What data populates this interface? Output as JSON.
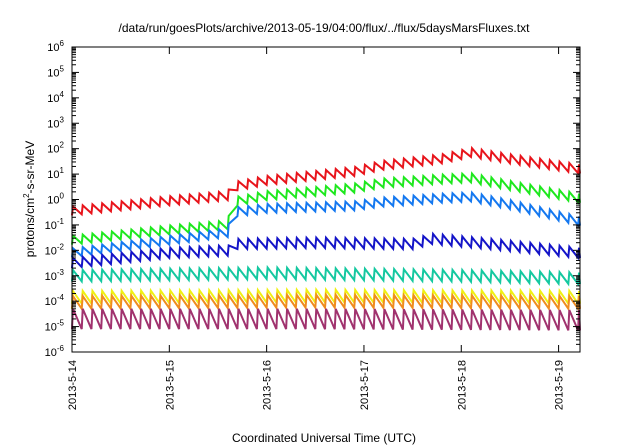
{
  "chart_data": {
    "type": "line",
    "title": "/data/run/goesPlots/archive/2013-05-19/04:00/flux/../flux/5daysMarsFluxes.txt",
    "xlabel": "Coordinated Universal Time (UTC)",
    "ylabel": "protons/cm²-s-sr-MeV",
    "ylabel_parts": [
      "protons/cm",
      "2",
      "-s-sr-MeV"
    ],
    "y_scale": "log",
    "ylim_exponents": [
      -6,
      6
    ],
    "y_tick_base": "10",
    "y_ticks": [
      "-6",
      "-5",
      "-4",
      "-3",
      "-2",
      "-1",
      "0",
      "1",
      "2",
      "3",
      "4",
      "5",
      "6"
    ],
    "xlim": [
      0,
      5.22
    ],
    "x_tick_labels": [
      "2013-5-14",
      "2013-5-15",
      "2013-5-16",
      "2013-5-17",
      "2013-5-18",
      "2013-5-19"
    ],
    "grid": false,
    "legend": "none",
    "series": [
      {
        "color": "#e8141b",
        "cycle_days": 0.1,
        "amplitude_decades": 0.35,
        "baseline": [
          [
            0,
            -0.45
          ],
          [
            1,
            -0.05
          ],
          [
            1.6,
            0.15
          ],
          [
            1.65,
            0.5
          ],
          [
            2,
            0.75
          ],
          [
            2.9,
            1.1
          ],
          [
            3.2,
            1.35
          ],
          [
            3.8,
            1.6
          ],
          [
            4.1,
            1.85
          ],
          [
            4.5,
            1.6
          ],
          [
            5.22,
            1.2
          ]
        ]
      },
      {
        "color": "#1ee81e",
        "cycle_days": 0.1,
        "amplitude_decades": 0.35,
        "baseline": [
          [
            0,
            -1.6
          ],
          [
            1,
            -1.2
          ],
          [
            1.6,
            -1.0
          ],
          [
            1.65,
            -0.1
          ],
          [
            2,
            0.15
          ],
          [
            2.9,
            0.45
          ],
          [
            3.2,
            0.65
          ],
          [
            3.8,
            0.8
          ],
          [
            4.1,
            0.85
          ],
          [
            4.5,
            0.55
          ],
          [
            5.22,
            0.05
          ]
        ]
      },
      {
        "color": "#1478f0",
        "cycle_days": 0.1,
        "amplitude_decades": 0.35,
        "baseline": [
          [
            0,
            -2.1
          ],
          [
            1,
            -1.6
          ],
          [
            1.6,
            -1.3
          ],
          [
            1.65,
            -0.5
          ],
          [
            2,
            -0.35
          ],
          [
            2.9,
            -0.25
          ],
          [
            3.2,
            -0.1
          ],
          [
            3.8,
            0.05
          ],
          [
            4.1,
            0.1
          ],
          [
            4.5,
            -0.2
          ],
          [
            5.22,
            -0.85
          ]
        ]
      },
      {
        "color": "#1414c8",
        "cycle_days": 0.1,
        "amplitude_decades": 0.4,
        "baseline": [
          [
            0,
            -2.5
          ],
          [
            1,
            -2.1
          ],
          [
            1.65,
            -2.0
          ],
          [
            1.7,
            -1.75
          ],
          [
            2.5,
            -1.7
          ],
          [
            3.5,
            -1.75
          ],
          [
            3.7,
            -1.55
          ],
          [
            4.3,
            -1.75
          ],
          [
            5.22,
            -2.1
          ]
        ]
      },
      {
        "color": "#14c8a0",
        "cycle_days": 0.1,
        "amplitude_decades": 0.45,
        "baseline": [
          [
            0,
            -3.0
          ],
          [
            1,
            -2.95
          ],
          [
            2,
            -2.9
          ],
          [
            3,
            -2.95
          ],
          [
            4,
            -3.0
          ],
          [
            5.22,
            -3.1
          ]
        ]
      },
      {
        "color": "#f0f014",
        "cycle_days": 0.1,
        "amplitude_decades": 0.5,
        "baseline": [
          [
            0,
            -3.85
          ],
          [
            2.5,
            -3.8
          ],
          [
            5.22,
            -3.85
          ]
        ]
      },
      {
        "color": "#f08c1e",
        "cycle_days": 0.1,
        "amplitude_decades": 0.5,
        "baseline": [
          [
            0,
            -4.05
          ],
          [
            2.5,
            -4.0
          ],
          [
            5.22,
            -4.05
          ]
        ]
      },
      {
        "color": "#a0326e",
        "cycle_days": 0.1,
        "amplitude_decades": 0.8,
        "baseline": [
          [
            0,
            -4.7
          ],
          [
            2.5,
            -4.7
          ],
          [
            5.22,
            -4.75
          ]
        ]
      }
    ]
  }
}
